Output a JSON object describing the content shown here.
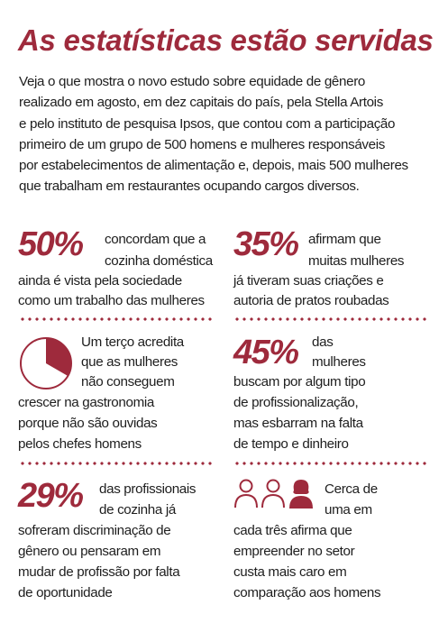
{
  "title": "As estatísticas estão servidas",
  "intro_lines": [
    "Veja o que mostra o novo estudo sobre equidade de gênero",
    "realizado em agosto, em dez capitais do país, pela Stella Artois",
    "e pelo instituto de pesquisa Ipsos, que contou com a participação",
    "primeiro de um grupo de 500 homens e mulheres responsáveis",
    "por estabelecimentos de alimentação e, depois, mais 500 mulheres",
    "que trabalham em restaurantes ocupando cargos diversos."
  ],
  "stats": [
    {
      "value": "50%",
      "lines": [
        "concordam que a",
        "cozinha doméstica",
        "ainda é vista pela sociedade",
        "como um trabalho das mulheres"
      ]
    },
    {
      "value": "35%",
      "lines": [
        "afirmam que",
        "muitas mulheres",
        "já tiveram suas criações e",
        "autoria de pratos roubadas"
      ]
    },
    {
      "icon": "pie-third-icon",
      "share": 0.333,
      "lines": [
        "Um terço acredita",
        "que as mulheres",
        "não conseguem",
        "crescer na gastronomia",
        "porque não são ouvidas",
        "pelos chefes homens"
      ]
    },
    {
      "value": "45%",
      "lines": [
        "das",
        "mulheres",
        "buscam por algum tipo",
        "de profissionalização,",
        "mas esbarram na falta",
        "de tempo e dinheiro"
      ]
    },
    {
      "value": "29%",
      "lines": [
        "das profissionais",
        "de cozinha já",
        "sofreram discriminação de",
        "gênero ou pensaram em",
        "mudar de profissão por falta",
        "de oportunidade"
      ]
    },
    {
      "icon": "people-icon",
      "lines": [
        "Cerca de",
        "uma em",
        "cada três afirma que",
        "empreender no setor",
        "custa mais caro em",
        "comparação aos homens"
      ]
    }
  ],
  "colors": {
    "accent": "#9e2a3c",
    "text": "#1e1e1e"
  }
}
